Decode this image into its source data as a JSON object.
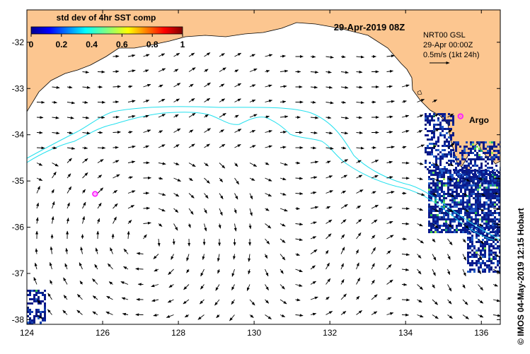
{
  "map": {
    "date_title": "29-Apr-2019 08Z",
    "model_label": "NRT00 GSL",
    "model_time": "29-Apr 00:00Z",
    "scale_label": "0.5m/s (1kt 24h)",
    "credit": "© IMOS 04-May-2019 12:15 Hobart",
    "argo_label": "Argo",
    "lon_range": [
      124,
      136.5
    ],
    "lat_range": [
      -38.1,
      -31.3
    ],
    "lon_ticks": [
      "124",
      "126",
      "128",
      "130",
      "132",
      "134",
      "136"
    ],
    "lat_ticks": [
      "-32",
      "-33",
      "-34",
      "-35",
      "-36",
      "-37",
      "-38"
    ]
  },
  "colorbar": {
    "title": "std dev of 4hr SST comp",
    "ticks": [
      "0",
      "0.2",
      "0.4",
      "0.6",
      "0.8",
      "1"
    ],
    "range": [
      0,
      1
    ]
  },
  "colors": {
    "land": "#fcc690",
    "ocean": "#ffffff",
    "contour": "#22e0ee",
    "argo": "#ff22ff",
    "frame": "#000000",
    "sst_low": "#0a1a8c"
  },
  "argo_floats": [
    {
      "lon": 135.45,
      "lat": -33.6,
      "labeled": true
    },
    {
      "lon": 125.8,
      "lat": -35.28,
      "labeled": false
    }
  ]
}
